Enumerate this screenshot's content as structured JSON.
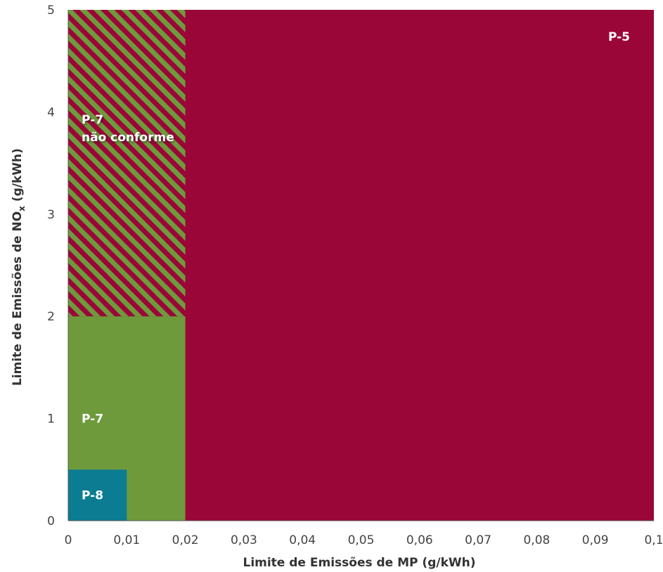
{
  "chart_data": {
    "type": "area",
    "xlabel": "Limite de Emissões de MP (g/kWh)",
    "ylabel_main": "Limite de Emissões de NO",
    "ylabel_sub": "x",
    "ylabel_tail": " (g/kWh)",
    "xlim": [
      0,
      0.1
    ],
    "ylim": [
      0,
      5
    ],
    "x_ticks": [
      0,
      0.01,
      0.02,
      0.03,
      0.04,
      0.05,
      0.06,
      0.07,
      0.08,
      0.09,
      0.1
    ],
    "x_tick_labels": [
      "0",
      "0,01",
      "0,02",
      "0,03",
      "0,04",
      "0,05",
      "0,06",
      "0,07",
      "0,08",
      "0,09",
      "0,1"
    ],
    "y_ticks": [
      0,
      1,
      2,
      3,
      4,
      5
    ],
    "y_tick_labels": [
      "0",
      "1",
      "2",
      "3",
      "4",
      "5"
    ],
    "grid": false,
    "regions": [
      {
        "name": "P-5",
        "x": [
          0,
          0.1
        ],
        "y": [
          0,
          5
        ],
        "color": "#9b0639",
        "pattern": "solid",
        "label_lines": [
          "P-5"
        ],
        "label_anchor": "top-right"
      },
      {
        "name": "P-7 não conforme",
        "x": [
          0,
          0.02
        ],
        "y": [
          2,
          5
        ],
        "color": "#6e9a3c",
        "pattern": "hatch",
        "label_lines": [
          "P-7",
          "não conforme"
        ],
        "label_anchor": "upper-left"
      },
      {
        "name": "P-7",
        "x": [
          0,
          0.02
        ],
        "y": [
          0,
          2
        ],
        "color": "#6e9a3c",
        "pattern": "solid",
        "label_lines": [
          "P-7"
        ],
        "label_anchor": "middle-left"
      },
      {
        "name": "P-8",
        "x": [
          0,
          0.01
        ],
        "y": [
          0,
          0.5
        ],
        "color": "#0b7c92",
        "pattern": "solid",
        "label_lines": [
          "P-8"
        ],
        "label_anchor": "middle-left"
      }
    ]
  }
}
